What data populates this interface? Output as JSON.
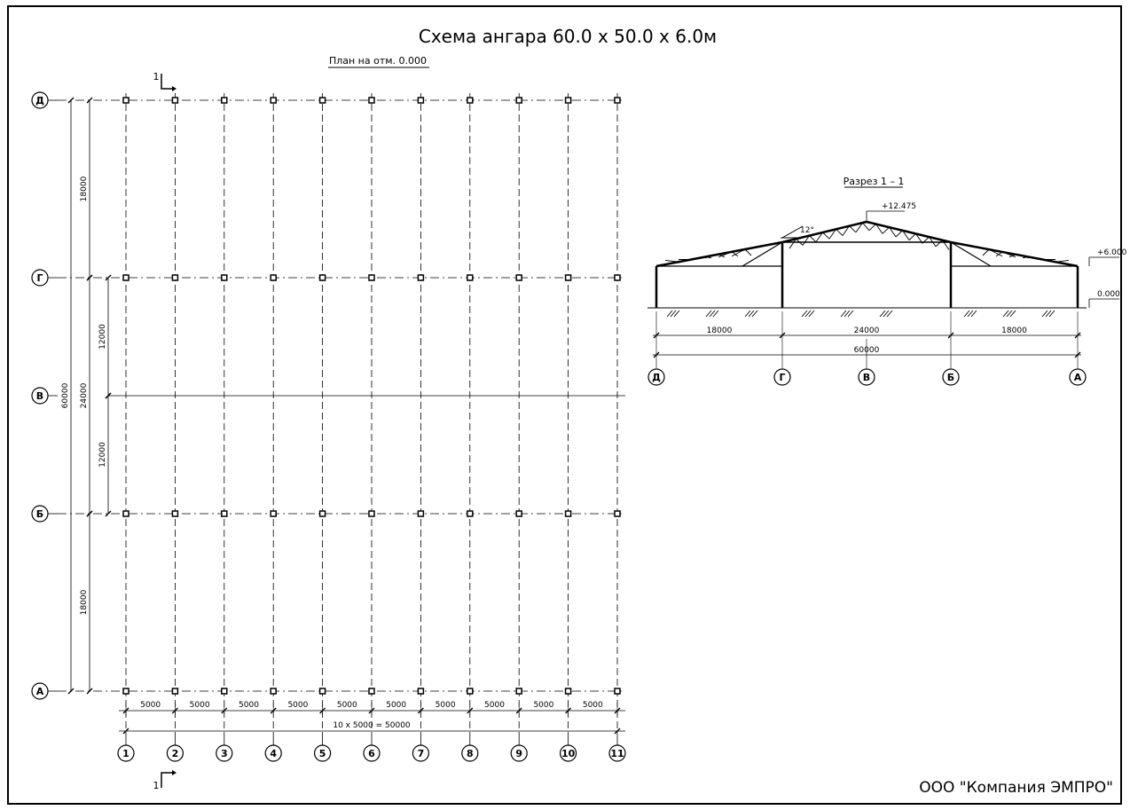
{
  "title": "Схема ангара 60.0 х 50.0 х 6.0м",
  "plan": {
    "title": "План на отм. 0.000",
    "cut_label": "1",
    "col_axes": [
      "1",
      "2",
      "3",
      "4",
      "5",
      "6",
      "7",
      "8",
      "9",
      "10",
      "11"
    ],
    "row_axes": [
      "Д",
      "Г",
      "В",
      "Б",
      "А"
    ],
    "bay_dims": [
      "5000",
      "5000",
      "5000",
      "5000",
      "5000",
      "5000",
      "5000",
      "5000",
      "5000",
      "5000"
    ],
    "total_width": "10 х 5000 = 50000",
    "left_dims": [
      "18000",
      "24000",
      "18000"
    ],
    "middle_dims": [
      "12000",
      "12000"
    ],
    "overall_dim": "60000"
  },
  "section": {
    "title": "Разрез 1 – 1",
    "angle": "12°",
    "ridge_mark": "+12.475",
    "eave_mark": "+6.000",
    "ground_mark": "0.000",
    "span_dims": [
      "18000",
      "24000",
      "18000"
    ],
    "total_dim": "60000",
    "axes": [
      "Д",
      "Г",
      "В",
      "Б",
      "А"
    ]
  },
  "company": "ООО \"Компания ЭМПРО\""
}
